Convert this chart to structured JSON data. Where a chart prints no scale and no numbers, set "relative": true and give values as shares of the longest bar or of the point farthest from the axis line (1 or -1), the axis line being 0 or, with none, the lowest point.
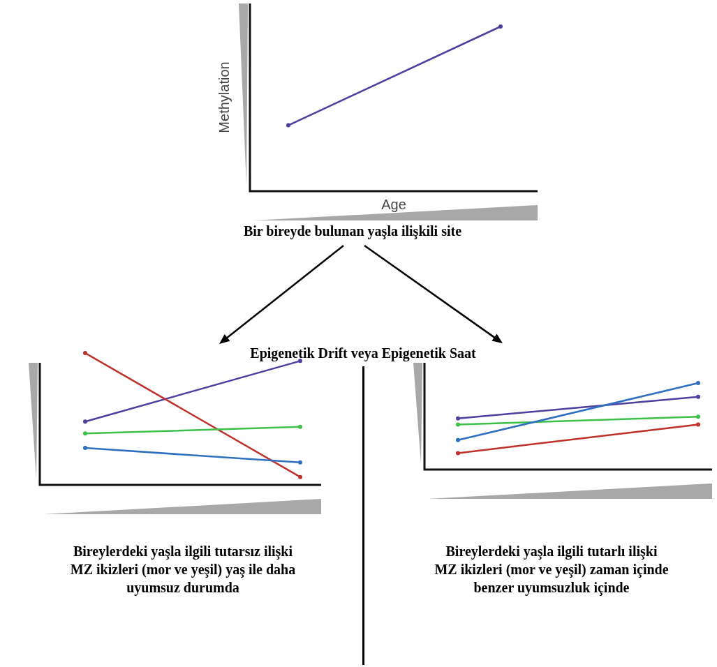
{
  "chart_data": [
    {
      "type": "line",
      "relative": true,
      "categories": [
        null,
        null
      ],
      "xlabel": "Age",
      "ylabel": "Methylation",
      "marker": "circle",
      "series": [
        {
          "color": "#4b3fa0",
          "values": [
            0.4,
            1
          ]
        }
      ],
      "annotations": [
        "Bir bireyde bulunan yaşla ilişkili site",
        "Epigenetik Drift veya Epigenetik Saat"
      ]
    },
    {
      "type": "line",
      "relative": true,
      "categories": [
        null,
        null
      ],
      "marker": "circle",
      "series": [
        {
          "color": "#4b3fa0",
          "values": [
            0.48,
            0.94
          ]
        },
        {
          "color": "#c0302a",
          "values": [
            1,
            0.06
          ]
        },
        {
          "color": "#3cc048",
          "values": [
            0.39,
            0.44
          ]
        },
        {
          "color": "#2f6fc0",
          "values": [
            0.28,
            0.17
          ]
        }
      ],
      "annotations": [
        "Bireylerdeki yaşla ilgili tutarsız ilişki",
        "MZ ikizleri (mor ve yeşil) yaş ile daha",
        "uyumsuz durumda"
      ]
    },
    {
      "type": "line",
      "relative": true,
      "categories": [
        null,
        null
      ],
      "marker": "circle",
      "series": [
        {
          "color": "#4b3fa0",
          "values": [
            0.59,
            0.84
          ]
        },
        {
          "color": "#3cc048",
          "values": [
            0.52,
            0.61
          ]
        },
        {
          "color": "#2f6fc0",
          "values": [
            0.34,
            1
          ]
        },
        {
          "color": "#c0302a",
          "values": [
            0.19,
            0.52
          ]
        }
      ],
      "annotations": [
        "Bireylerdeki yaşla ilgili tutarlı ilişki",
        "MZ ikizleri (mor ve yeşil) zaman içinde",
        "benzer uyumsuzluk içinde"
      ]
    }
  ]
}
